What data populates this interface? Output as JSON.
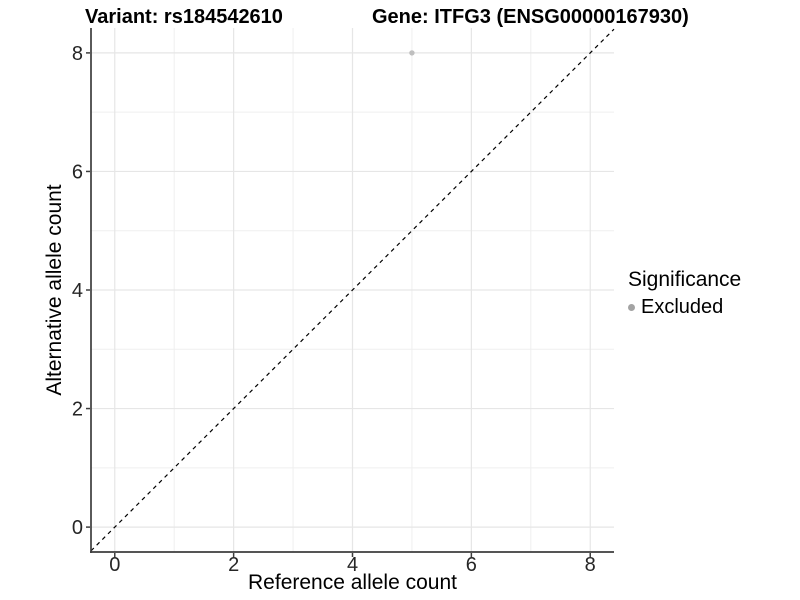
{
  "chart_data": {
    "type": "scatter",
    "title_left": "Variant: rs184542610",
    "title_right": "Gene: ITFG3 (ENSG00000167930)",
    "xlabel": "Reference allele count",
    "ylabel": "Alternative allele count",
    "xlim": [
      -0.4,
      8.4
    ],
    "ylim": [
      -0.42,
      8.42
    ],
    "xticks": [
      0,
      2,
      4,
      6,
      8
    ],
    "yticks": [
      0,
      2,
      4,
      6,
      8
    ],
    "minor_xticks": [
      1,
      3,
      5,
      7
    ],
    "minor_yticks": [
      1,
      3,
      5,
      7
    ],
    "grid": true,
    "legend_position": "right",
    "series": [
      {
        "name": "Excluded",
        "color": "#bfbfbf",
        "points": [
          {
            "x": 5,
            "y": 8
          }
        ]
      }
    ],
    "reference_line": {
      "equation": "y = x",
      "style": "dashed",
      "color": "#000000"
    }
  },
  "legend": {
    "title": "Significance",
    "items": [
      {
        "label": "Excluded",
        "color": "#a3a3a3"
      }
    ]
  },
  "colors": {
    "background": "#ffffff",
    "grid_major": "#e6e6e6",
    "grid_minor": "#efefef",
    "axis_line": "#3d3d3d",
    "tick_mark": "#3d3d3d",
    "tick_text": "#262626"
  }
}
